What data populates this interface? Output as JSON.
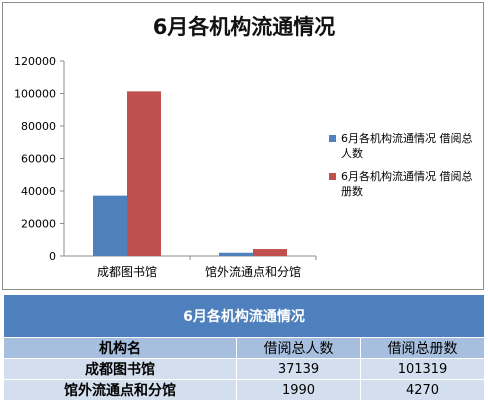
{
  "chart_data": {
    "type": "bar",
    "title": "6月各机构流通情况",
    "categories": [
      "成都图书馆",
      "馆外流通点和分馆"
    ],
    "series": [
      {
        "name": "6月各机构流通情况 借阅总人数",
        "values": [
          37139,
          1990
        ],
        "color": "#4f81bd"
      },
      {
        "name": "6月各机构流通情况 借阅总册数",
        "values": [
          101319,
          4270
        ],
        "color": "#c0504d"
      }
    ],
    "ylim": [
      0,
      120000
    ],
    "yticks": [
      0,
      20000,
      40000,
      60000,
      80000,
      100000,
      120000
    ],
    "grid": false,
    "legend_position": "right"
  },
  "table": {
    "caption": "6月各机构流通情况",
    "headers": [
      "机构名",
      "借阅总人数",
      "借阅总册数"
    ],
    "rows": [
      [
        "成都图书馆",
        "37139",
        "101319"
      ],
      [
        "馆外流通点和分馆",
        "1990",
        "4270"
      ]
    ]
  }
}
